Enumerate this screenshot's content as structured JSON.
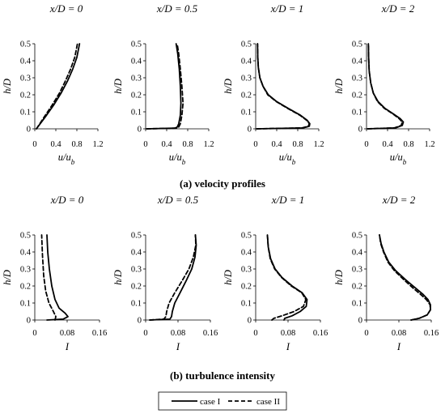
{
  "captions": {
    "a_letter": "a",
    "a_text": " velocity profiles",
    "b_letter": "b",
    "b_text": " turbulence intensity"
  },
  "legend": {
    "case1": "case I",
    "case2": "case II"
  },
  "series_style": {
    "case I": "solid",
    "case II": "dashed"
  },
  "chart_data": [
    {
      "type": "line",
      "panel_title": "x/D = 0",
      "xlabel": "u/u_b",
      "ylabel": "h/D",
      "xlim": [
        0,
        1.2
      ],
      "ylim": [
        0,
        0.5
      ],
      "xticks": [
        "0",
        "0.4",
        "0.8",
        "1.2"
      ],
      "yticks": [
        "0",
        "0.1",
        "0.2",
        "0.3",
        "0.4",
        "0.5"
      ],
      "series": [
        {
          "name": "case I",
          "x": [
            0.03,
            0.2,
            0.36,
            0.5,
            0.62,
            0.72,
            0.8,
            0.85
          ],
          "y": [
            0,
            0.07,
            0.14,
            0.21,
            0.28,
            0.35,
            0.42,
            0.5
          ]
        },
        {
          "name": "case II",
          "x": [
            0.03,
            0.18,
            0.33,
            0.47,
            0.58,
            0.68,
            0.76,
            0.81
          ],
          "y": [
            0,
            0.07,
            0.14,
            0.21,
            0.28,
            0.35,
            0.42,
            0.5
          ]
        }
      ]
    },
    {
      "type": "line",
      "panel_title": "x/D = 0.5",
      "xlabel": "u/u_b",
      "ylabel": "h/D",
      "xlim": [
        0,
        1.2
      ],
      "ylim": [
        0,
        0.5
      ],
      "xticks": [
        "0",
        "0.4",
        "0.8",
        "1.2"
      ],
      "yticks": [
        "0",
        "0.1",
        "0.2",
        "0.3",
        "0.4",
        "0.5"
      ],
      "series": [
        {
          "name": "case I",
          "x": [
            0.02,
            0.55,
            0.6,
            0.63,
            0.66,
            0.67,
            0.66,
            0.64,
            0.61,
            0.58
          ],
          "y": [
            0,
            0.004,
            0.01,
            0.03,
            0.08,
            0.15,
            0.25,
            0.35,
            0.44,
            0.5
          ]
        },
        {
          "name": "case II",
          "x": [
            0.02,
            0.58,
            0.63,
            0.66,
            0.69,
            0.71,
            0.69,
            0.66,
            0.63,
            0.6
          ],
          "y": [
            0,
            0.004,
            0.01,
            0.03,
            0.08,
            0.15,
            0.25,
            0.35,
            0.44,
            0.5
          ]
        }
      ]
    },
    {
      "type": "line",
      "panel_title": "x/D = 1",
      "xlabel": "u/u_b",
      "ylabel": "h/D",
      "xlim": [
        0,
        1.2
      ],
      "ylim": [
        0,
        0.5
      ],
      "xticks": [
        "0",
        "0.4",
        "0.8",
        "1.2"
      ],
      "yticks": [
        "0",
        "0.1",
        "0.2",
        "0.3",
        "0.4",
        "0.5"
      ],
      "series": [
        {
          "name": "case I",
          "x": [
            0.02,
            0.9,
            1.02,
            1.03,
            0.98,
            0.85,
            0.62,
            0.4,
            0.24,
            0.14,
            0.08,
            0.05,
            0.04,
            0.035
          ],
          "y": [
            0,
            0.005,
            0.015,
            0.03,
            0.05,
            0.08,
            0.12,
            0.16,
            0.2,
            0.25,
            0.3,
            0.36,
            0.42,
            0.5
          ]
        },
        {
          "name": "case II",
          "x": [
            0.02,
            0.88,
            1.0,
            1.02,
            0.97,
            0.84,
            0.61,
            0.39,
            0.23,
            0.14,
            0.08,
            0.05,
            0.04,
            0.035
          ],
          "y": [
            0,
            0.005,
            0.015,
            0.03,
            0.05,
            0.08,
            0.12,
            0.16,
            0.2,
            0.25,
            0.3,
            0.36,
            0.42,
            0.5
          ]
        }
      ]
    },
    {
      "type": "line",
      "panel_title": "x/D = 2",
      "xlabel": "u/u_b",
      "ylabel": "h/D",
      "xlim": [
        0,
        1.2
      ],
      "ylim": [
        0,
        0.5
      ],
      "xticks": [
        "0",
        "0.4",
        "0.8",
        "1.2"
      ],
      "yticks": [
        "0",
        "0.1",
        "0.2",
        "0.3",
        "0.4",
        "0.5"
      ],
      "series": [
        {
          "name": "case I",
          "x": [
            0.02,
            0.55,
            0.68,
            0.7,
            0.64,
            0.5,
            0.35,
            0.22,
            0.13,
            0.08,
            0.05,
            0.04,
            0.035
          ],
          "y": [
            0,
            0.005,
            0.02,
            0.04,
            0.06,
            0.09,
            0.12,
            0.16,
            0.21,
            0.27,
            0.34,
            0.42,
            0.5
          ]
        },
        {
          "name": "case II",
          "x": [
            0.02,
            0.53,
            0.66,
            0.68,
            0.62,
            0.49,
            0.34,
            0.21,
            0.13,
            0.08,
            0.05,
            0.04,
            0.035
          ],
          "y": [
            0,
            0.005,
            0.02,
            0.04,
            0.06,
            0.09,
            0.12,
            0.16,
            0.21,
            0.27,
            0.34,
            0.42,
            0.5
          ]
        }
      ]
    },
    {
      "type": "line",
      "panel_title": "x/D = 0",
      "xlabel": "I",
      "ylabel": "h/D",
      "xlim": [
        0,
        0.16
      ],
      "ylim": [
        0,
        0.5
      ],
      "xticks": [
        "0",
        "0.08",
        "0.16"
      ],
      "yticks": [
        "0",
        "0.1",
        "0.2",
        "0.3",
        "0.4",
        "0.5"
      ],
      "series": [
        {
          "name": "case I",
          "x": [
            0.03,
            0.07,
            0.082,
            0.075,
            0.06,
            0.05,
            0.042,
            0.036,
            0.032,
            0.03
          ],
          "y": [
            0,
            0.005,
            0.02,
            0.04,
            0.07,
            0.12,
            0.2,
            0.3,
            0.4,
            0.5
          ]
        },
        {
          "name": "case II",
          "x": [
            0.05,
            0.052,
            0.046,
            0.035,
            0.027,
            0.022,
            0.019,
            0.017
          ],
          "y": [
            0,
            0.02,
            0.05,
            0.1,
            0.17,
            0.26,
            0.38,
            0.5
          ]
        }
      ]
    },
    {
      "type": "line",
      "panel_title": "x/D = 0.5",
      "xlabel": "I",
      "ylabel": "h/D",
      "xlim": [
        0,
        0.16
      ],
      "ylim": [
        0,
        0.5
      ],
      "xticks": [
        "0",
        "0.08",
        "0.16"
      ],
      "yticks": [
        "0",
        "0.1",
        "0.2",
        "0.3",
        "0.4",
        "0.5"
      ],
      "series": [
        {
          "name": "case I",
          "x": [
            0.01,
            0.06,
            0.064,
            0.066,
            0.072,
            0.085,
            0.1,
            0.114,
            0.122,
            0.125,
            0.123
          ],
          "y": [
            0,
            0.005,
            0.02,
            0.05,
            0.1,
            0.16,
            0.23,
            0.3,
            0.37,
            0.44,
            0.5
          ]
        },
        {
          "name": "case II",
          "x": [
            0.01,
            0.045,
            0.05,
            0.052,
            0.058,
            0.072,
            0.09,
            0.107,
            0.118,
            0.124,
            0.123
          ],
          "y": [
            0,
            0.005,
            0.02,
            0.05,
            0.1,
            0.16,
            0.23,
            0.3,
            0.37,
            0.44,
            0.5
          ]
        }
      ]
    },
    {
      "type": "line",
      "panel_title": "x/D = 1",
      "xlabel": "I",
      "ylabel": "h/D",
      "xlim": [
        0,
        0.16
      ],
      "ylim": [
        0,
        0.5
      ],
      "xticks": [
        "0",
        "0.08",
        "0.16"
      ],
      "yticks": [
        "0",
        "0.1",
        "0.2",
        "0.3",
        "0.4",
        "0.5"
      ],
      "series": [
        {
          "name": "case I",
          "x": [
            0.07,
            0.072,
            0.09,
            0.11,
            0.125,
            0.127,
            0.115,
            0.09,
            0.065,
            0.048,
            0.037,
            0.031,
            0.029
          ],
          "y": [
            0,
            0.01,
            0.025,
            0.05,
            0.08,
            0.12,
            0.16,
            0.2,
            0.25,
            0.3,
            0.36,
            0.43,
            0.5
          ]
        },
        {
          "name": "case II",
          "x": [
            0.04,
            0.045,
            0.065,
            0.095,
            0.118,
            0.124,
            0.114,
            0.088,
            0.064,
            0.047,
            0.036,
            0.031,
            0.029
          ],
          "y": [
            0,
            0.01,
            0.025,
            0.05,
            0.08,
            0.12,
            0.16,
            0.2,
            0.25,
            0.3,
            0.36,
            0.43,
            0.5
          ]
        }
      ]
    },
    {
      "type": "line",
      "panel_title": "x/D = 2",
      "xlabel": "I",
      "ylabel": "h/D",
      "xlim": [
        0,
        0.16
      ],
      "ylim": [
        0,
        0.5
      ],
      "xticks": [
        "0",
        "0.08",
        "0.16"
      ],
      "yticks": [
        "0",
        "0.1",
        "0.2",
        "0.3",
        "0.4",
        "0.5"
      ],
      "series": [
        {
          "name": "case I",
          "x": [
            0.11,
            0.13,
            0.15,
            0.158,
            0.158,
            0.152,
            0.14,
            0.12,
            0.095,
            0.072,
            0.055,
            0.043,
            0.036,
            0.032
          ],
          "y": [
            0,
            0.01,
            0.03,
            0.06,
            0.09,
            0.12,
            0.15,
            0.19,
            0.24,
            0.29,
            0.34,
            0.4,
            0.45,
            0.5
          ]
        },
        {
          "name": "case II",
          "x": [
            0.11,
            0.13,
            0.15,
            0.158,
            0.157,
            0.148,
            0.134,
            0.114,
            0.091,
            0.069,
            0.053,
            0.042,
            0.035,
            0.032
          ],
          "y": [
            0,
            0.01,
            0.03,
            0.06,
            0.09,
            0.12,
            0.15,
            0.19,
            0.24,
            0.29,
            0.34,
            0.4,
            0.45,
            0.5
          ]
        }
      ]
    }
  ]
}
